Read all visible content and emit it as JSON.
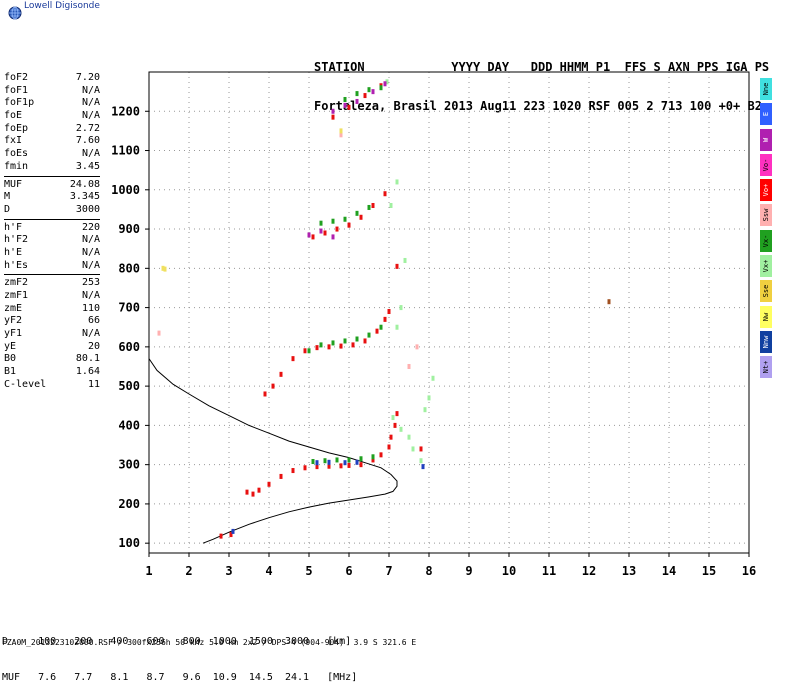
{
  "logo_text": "Lowell Digisonde",
  "header": {
    "line1": "STATION            YYYY DAY   DDD HHMM P1  FFS S AXN PPS IGA PS",
    "line2": "Fortaleza, Brasil 2013 Aug11 223 1020 RSF 005 2 713 100 +0+ B2"
  },
  "params": [
    [
      [
        "foF2",
        "7.20"
      ],
      [
        "foF1",
        "N/A"
      ],
      [
        "foF1p",
        "N/A"
      ],
      [
        "foE",
        "N/A"
      ],
      [
        "foEp",
        "2.72"
      ],
      [
        "fxI",
        "7.60"
      ],
      [
        "foEs",
        "N/A"
      ],
      [
        "fmin",
        "3.45"
      ]
    ],
    [
      [
        "MUF",
        "24.08"
      ],
      [
        "M",
        "3.345"
      ],
      [
        "D",
        "3000"
      ]
    ],
    [
      [
        "h'F",
        "220"
      ],
      [
        "h'F2",
        "N/A"
      ],
      [
        "h'E",
        "N/A"
      ],
      [
        "h'Es",
        "N/A"
      ]
    ],
    [
      [
        "zmF2",
        "253"
      ],
      [
        "zmF1",
        "N/A"
      ],
      [
        "zmE",
        "110"
      ],
      [
        "yF2",
        "66"
      ],
      [
        "yF1",
        "N/A"
      ],
      [
        "yE",
        "20"
      ],
      [
        "B0",
        "80.1"
      ],
      [
        "B1",
        "1.64"
      ],
      [
        "C-level",
        "11"
      ]
    ]
  ],
  "legend": [
    {
      "label": "Nne",
      "color": "#40e0e0"
    },
    {
      "label": "E",
      "color": "#3060ff"
    },
    {
      "label": "W",
      "color": "#b020b0"
    },
    {
      "label": "Vo-",
      "color": "#ff30c0"
    },
    {
      "label": "Vo+",
      "color": "#ff0000"
    },
    {
      "label": "Ssw",
      "color": "#ffb0b0"
    },
    {
      "label": "Vx-",
      "color": "#20a020"
    },
    {
      "label": "Vx+",
      "color": "#a0f0a0"
    },
    {
      "label": "Sse",
      "color": "#f0d040"
    },
    {
      "label": "Nw",
      "color": "#ffff60"
    },
    {
      "label": "Nnw",
      "color": "#1040a0"
    },
    {
      "label": "Nt+",
      "color": "#b0a0f0"
    }
  ],
  "muf_table": {
    "row1": "D     100   200   400   600   800  1000  1500  3000   [km]",
    "row2": "MUF   7.6   7.7   8.1   8.7   9.6  10.9  14.5  24.1   [MHz]"
  },
  "footer": "FZA0M_2013223102000.RSF / 300fx256h 50 kHz 5.0 km 2x2 / DPS-4 (904-904)  3.9 S 321.6 E",
  "chart_data": {
    "type": "scatter",
    "xlim": [
      1,
      16
    ],
    "ylim": [
      75,
      1300
    ],
    "x_ticks": [
      1,
      2,
      3,
      4,
      5,
      6,
      7,
      8,
      9,
      10,
      11,
      12,
      13,
      14,
      15,
      16
    ],
    "y_ticks": [
      100,
      200,
      300,
      400,
      500,
      600,
      700,
      800,
      900,
      1000,
      1100,
      1200
    ],
    "grid": true,
    "profile": {
      "x": [
        1.0,
        1.2,
        1.6,
        2.0,
        2.5,
        3.0,
        3.5,
        4.0,
        4.5,
        5.0,
        5.5,
        6.0,
        6.4,
        6.8,
        7.05,
        7.2,
        7.2,
        7.1,
        6.9,
        6.5,
        6.0,
        5.5,
        5.0,
        4.5,
        4.0,
        3.5,
        3.0,
        2.6,
        2.35
      ],
      "y": [
        570,
        540,
        505,
        480,
        450,
        425,
        400,
        380,
        360,
        345,
        330,
        318,
        305,
        292,
        275,
        258,
        245,
        232,
        225,
        218,
        210,
        202,
        192,
        180,
        165,
        148,
        128,
        110,
        100
      ]
    },
    "series": [
      {
        "color": "#e81010",
        "points": [
          [
            2.8,
            118
          ],
          [
            3.05,
            122
          ],
          [
            3.45,
            230
          ],
          [
            3.6,
            225
          ],
          [
            3.75,
            235
          ],
          [
            4.0,
            250
          ],
          [
            4.3,
            270
          ],
          [
            4.6,
            285
          ],
          [
            4.9,
            292
          ],
          [
            5.2,
            295
          ],
          [
            5.5,
            296
          ],
          [
            5.8,
            297
          ],
          [
            6.0,
            298
          ],
          [
            6.3,
            300
          ],
          [
            6.6,
            312
          ],
          [
            6.8,
            325
          ],
          [
            7.0,
            345
          ],
          [
            7.05,
            370
          ],
          [
            7.15,
            400
          ],
          [
            7.2,
            430
          ],
          [
            7.8,
            340
          ],
          [
            3.9,
            480
          ],
          [
            4.1,
            500
          ],
          [
            4.3,
            530
          ],
          [
            4.6,
            570
          ],
          [
            4.9,
            590
          ],
          [
            5.2,
            598
          ],
          [
            5.5,
            600
          ],
          [
            5.8,
            602
          ],
          [
            6.1,
            605
          ],
          [
            6.4,
            615
          ],
          [
            6.7,
            640
          ],
          [
            6.9,
            670
          ],
          [
            7.0,
            690
          ],
          [
            5.1,
            880
          ],
          [
            5.4,
            890
          ],
          [
            5.7,
            900
          ],
          [
            6.0,
            910
          ],
          [
            6.3,
            930
          ],
          [
            6.6,
            960
          ],
          [
            6.9,
            990
          ],
          [
            7.2,
            805
          ],
          [
            5.6,
            1185
          ],
          [
            6.0,
            1210
          ],
          [
            6.4,
            1240
          ],
          [
            6.8,
            1265
          ]
        ]
      },
      {
        "color": "#20a020",
        "points": [
          [
            5.1,
            308
          ],
          [
            5.4,
            310
          ],
          [
            5.7,
            312
          ],
          [
            6.0,
            312
          ],
          [
            6.3,
            315
          ],
          [
            6.6,
            320
          ],
          [
            5.0,
            590
          ],
          [
            5.3,
            605
          ],
          [
            5.6,
            610
          ],
          [
            5.9,
            615
          ],
          [
            6.2,
            620
          ],
          [
            6.5,
            630
          ],
          [
            6.8,
            650
          ],
          [
            5.3,
            915
          ],
          [
            5.6,
            920
          ],
          [
            5.9,
            925
          ],
          [
            6.2,
            940
          ],
          [
            6.5,
            955
          ],
          [
            5.9,
            1230
          ],
          [
            6.2,
            1245
          ],
          [
            6.5,
            1255
          ],
          [
            6.8,
            1260
          ]
        ]
      },
      {
        "color": "#a0f0a0",
        "points": [
          [
            7.1,
            420
          ],
          [
            7.3,
            390
          ],
          [
            7.5,
            370
          ],
          [
            7.6,
            340
          ],
          [
            7.8,
            310
          ],
          [
            7.9,
            440
          ],
          [
            8.0,
            470
          ],
          [
            8.1,
            520
          ],
          [
            7.2,
            650
          ],
          [
            7.3,
            700
          ],
          [
            7.05,
            960
          ],
          [
            7.2,
            1020
          ],
          [
            7.4,
            820
          ],
          [
            6.95,
            1275
          ]
        ]
      },
      {
        "color": "#b020b0",
        "points": [
          [
            5.0,
            885
          ],
          [
            5.3,
            895
          ],
          [
            5.6,
            880
          ],
          [
            5.6,
            1200
          ],
          [
            5.9,
            1215
          ],
          [
            6.2,
            1225
          ],
          [
            6.6,
            1250
          ],
          [
            6.9,
            1270
          ]
        ]
      },
      {
        "color": "#2040c0",
        "points": [
          [
            3.1,
            130
          ],
          [
            5.2,
            305
          ],
          [
            5.5,
            306
          ],
          [
            5.9,
            305
          ],
          [
            6.2,
            306
          ],
          [
            7.85,
            295
          ]
        ]
      },
      {
        "color": "#ffb0b0",
        "points": [
          [
            1.25,
            635
          ],
          [
            7.5,
            550
          ],
          [
            7.7,
            600
          ],
          [
            5.8,
            1140
          ]
        ]
      },
      {
        "color": "#f0e060",
        "points": [
          [
            1.35,
            800
          ],
          [
            1.4,
            798
          ],
          [
            5.8,
            1150
          ]
        ]
      },
      {
        "color": "#a05020",
        "points": [
          [
            12.5,
            715
          ]
        ]
      }
    ]
  }
}
